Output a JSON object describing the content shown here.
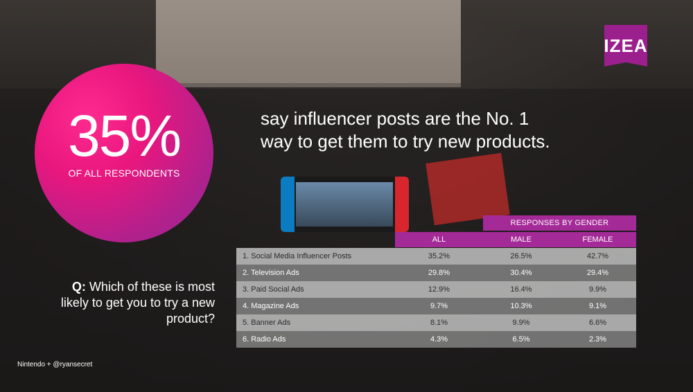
{
  "logo": {
    "text": "IZEA",
    "color": "#9b1f8d"
  },
  "stat": {
    "value": "35%",
    "label": "OF ALL RESPONDENTS"
  },
  "headline": "say influencer posts are the No. 1 way to get them to try new products.",
  "question": {
    "prefix": "Q:",
    "text": "Which of these is most likely to get you to try a new product?"
  },
  "table": {
    "group_header": "RESPONSES BY GENDER",
    "columns": [
      "ALL",
      "MALE",
      "FEMALE"
    ],
    "rows": [
      {
        "label": "1. Social Media Influencer Posts",
        "all": "35.2%",
        "male": "26.5%",
        "female": "42.7%"
      },
      {
        "label": "2. Television Ads",
        "all": "29.8%",
        "male": "30.4%",
        "female": "29.4%"
      },
      {
        "label": "3. Paid Social Ads",
        "all": "12.9%",
        "male": "16.4%",
        "female": "9.9%"
      },
      {
        "label": "4. Magazine Ads",
        "all": "9.7%",
        "male": "10.3%",
        "female": "9.1%"
      },
      {
        "label": "5. Banner Ads",
        "all": "8.1%",
        "male": "9.9%",
        "female": "6.6%"
      },
      {
        "label": "6. Radio Ads",
        "all": "4.3%",
        "male": "6.5%",
        "female": "2.3%"
      }
    ]
  },
  "credit": "Nintendo + @ryansecret",
  "colors": {
    "accent": "#a42a98",
    "circle": "#e8177e"
  }
}
